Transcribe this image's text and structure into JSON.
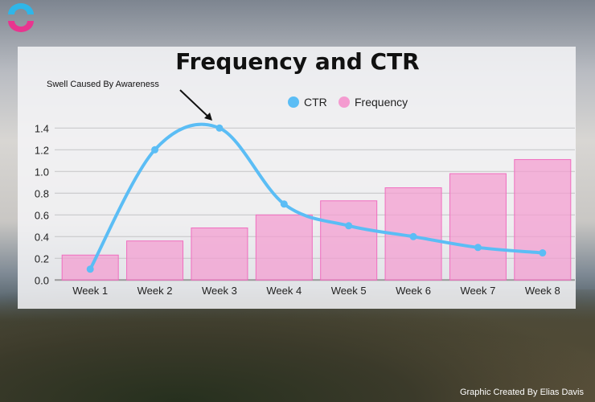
{
  "chart_data": {
    "type": "bar+line",
    "title": "Frequency and CTR",
    "categories": [
      "Week 1",
      "Week 2",
      "Week 3",
      "Week 4",
      "Week 5",
      "Week 6",
      "Week 7",
      "Week 8"
    ],
    "series": [
      {
        "name": "CTR",
        "type": "line",
        "color": "#5bbdf5",
        "values": [
          0.1,
          1.2,
          1.4,
          0.7,
          0.5,
          0.4,
          0.3,
          0.25
        ]
      },
      {
        "name": "Frequency",
        "type": "bar",
        "color": "#f49bd0",
        "values": [
          0.23,
          0.36,
          0.48,
          0.6,
          0.73,
          0.85,
          0.98,
          1.11
        ]
      }
    ],
    "ylim": [
      0,
      1.4
    ],
    "yticks": [
      "0.0",
      "0.2",
      "0.4",
      "0.6",
      "0.8",
      "1.0",
      "1.2",
      "1.4"
    ],
    "grid": true,
    "legend": "top-right",
    "annotation": {
      "text": "Swell Caused By Awareness",
      "target": "Week 3"
    }
  },
  "footer": {
    "credit": "Graphic Created By Elias Davis"
  }
}
